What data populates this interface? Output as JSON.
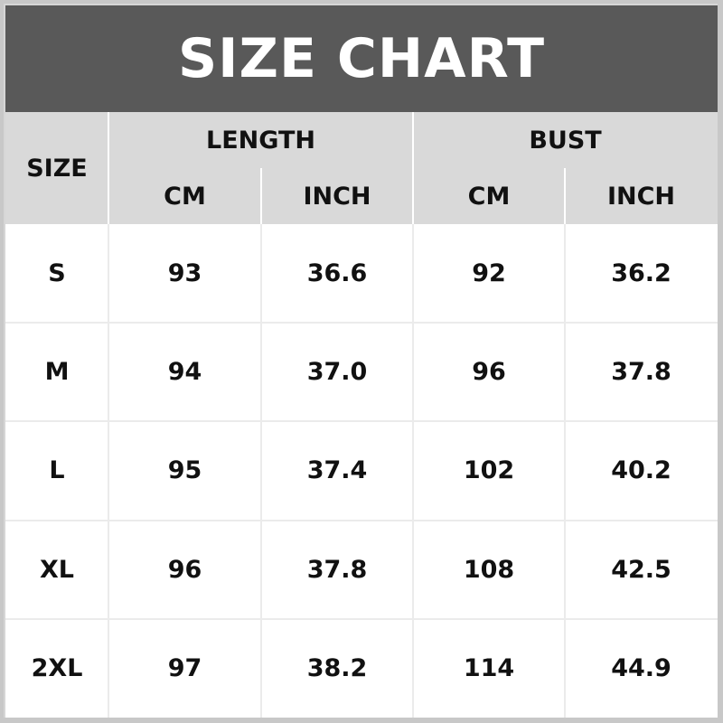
{
  "title": "SIZE CHART",
  "headers": {
    "size": "SIZE",
    "groups": [
      {
        "label": "LENGTH",
        "sub": [
          "CM",
          "INCH"
        ]
      },
      {
        "label": "BUST",
        "sub": [
          "CM",
          "INCH"
        ]
      }
    ]
  },
  "rows": [
    [
      "S",
      "93",
      "36.6",
      "92",
      "36.2"
    ],
    [
      "M",
      "94",
      "37.0",
      "96",
      "37.8"
    ],
    [
      "L",
      "95",
      "37.4",
      "102",
      "40.2"
    ],
    [
      "XL",
      "96",
      "37.8",
      "108",
      "42.5"
    ],
    [
      "2XL",
      "97",
      "38.2",
      "114",
      "44.9"
    ]
  ],
  "colors": {
    "title_bg": "#595959",
    "header_bg": "#d9d9d9",
    "body_bg": "#ffffff"
  }
}
